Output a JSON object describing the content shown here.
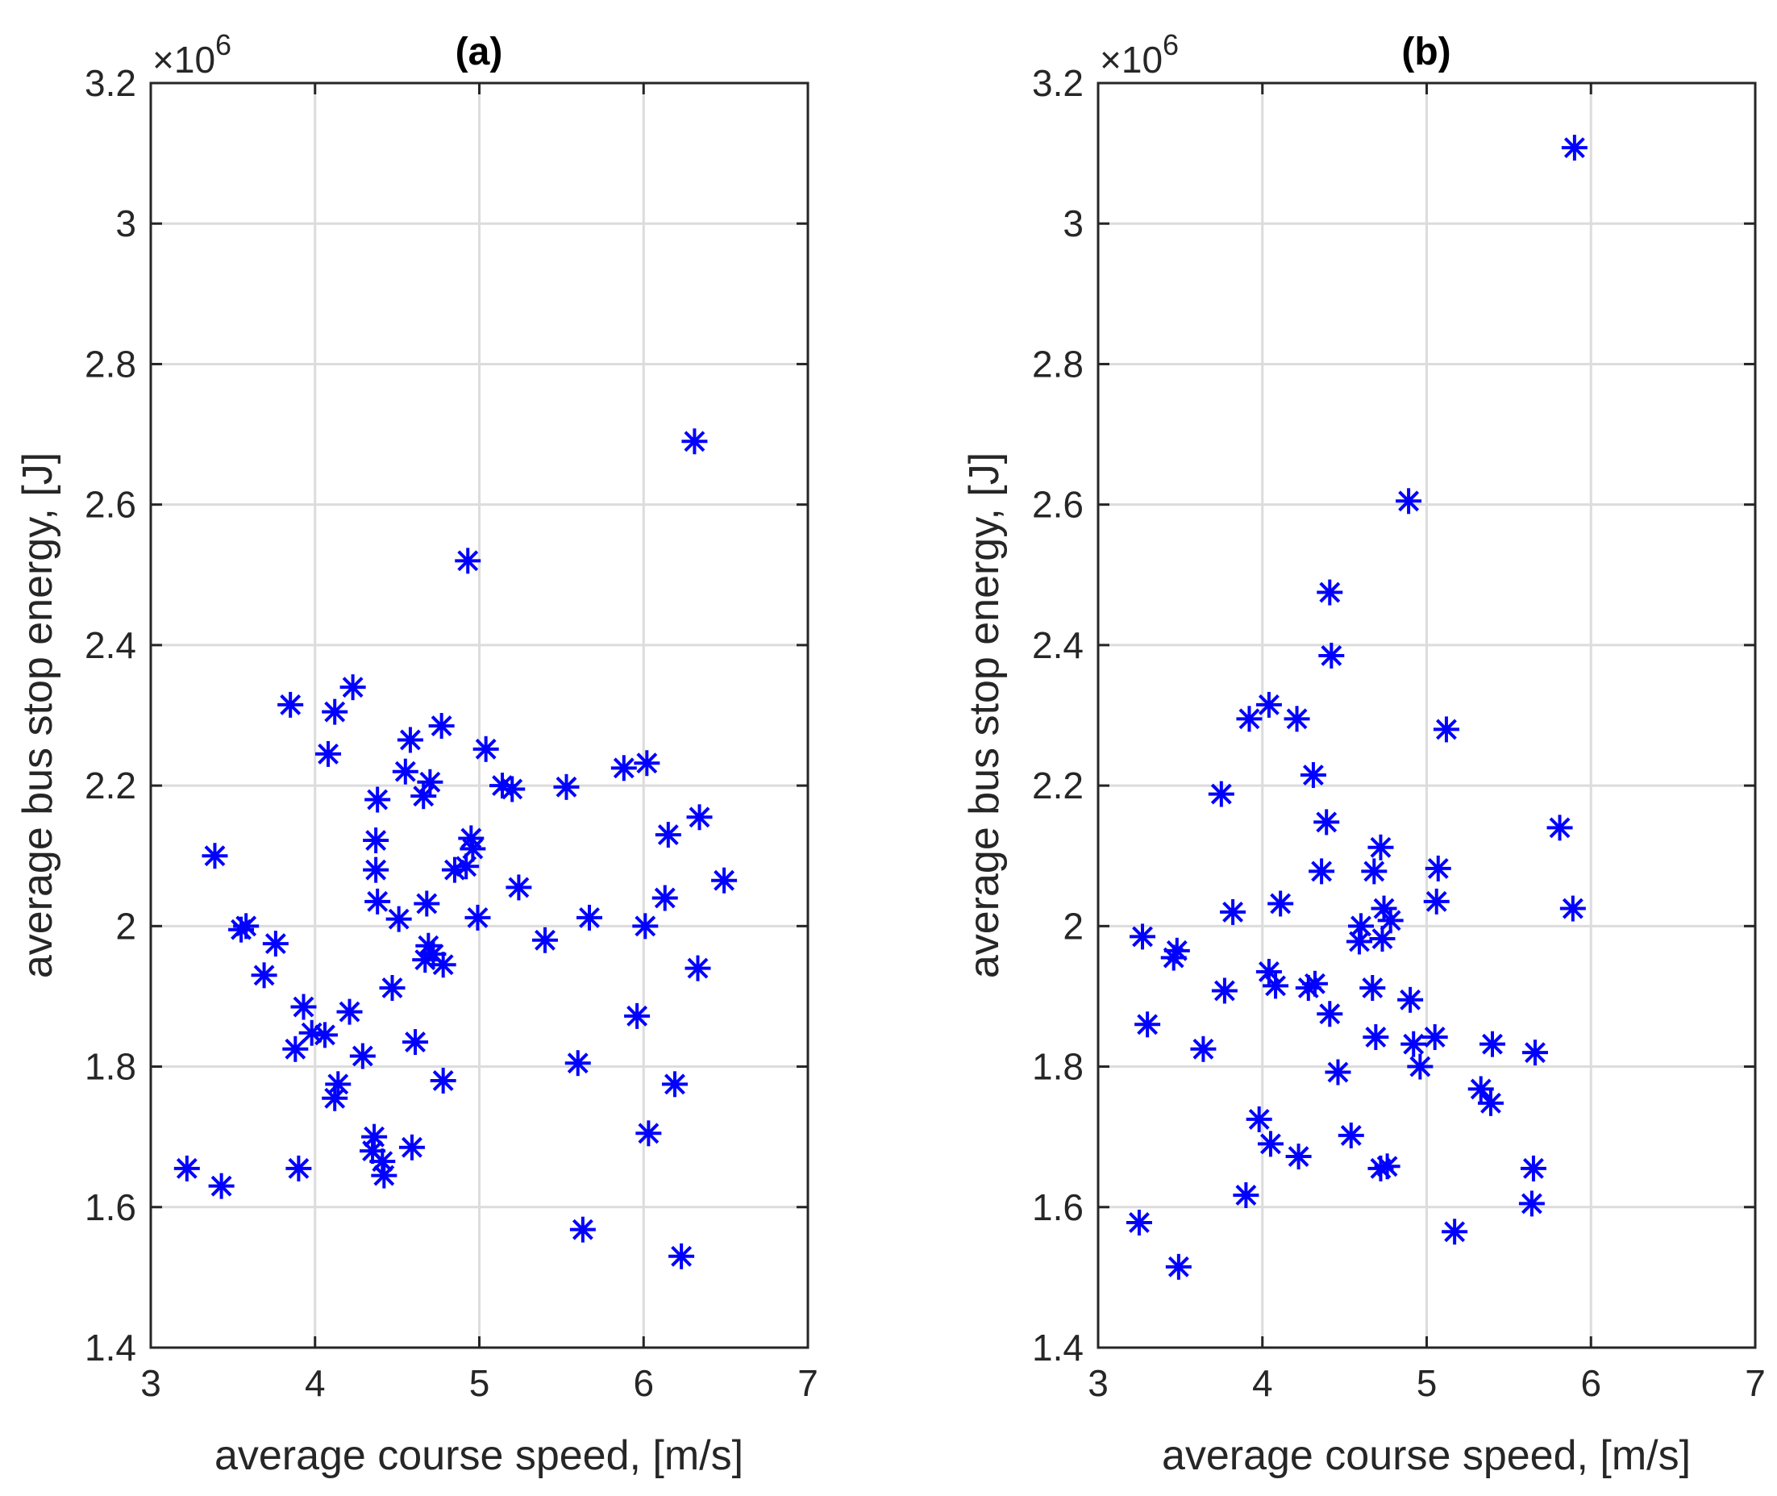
{
  "chart_data": [
    {
      "type": "scatter",
      "title": "(a)",
      "xlabel": "average course speed, [m/s]",
      "ylabel": "average bus stop energy, [J]",
      "exponent_label": "×10",
      "exponent_power": "6",
      "xlim": [
        3,
        7
      ],
      "ylim": [
        1.4,
        3.2
      ],
      "xticks": [
        3,
        4,
        5,
        6,
        7
      ],
      "yticks": [
        1.4,
        1.6,
        1.8,
        2.0,
        2.2,
        2.4,
        2.6,
        2.8,
        3.0,
        3.2
      ],
      "xtick_labels": [
        "3",
        "4",
        "5",
        "6",
        "7"
      ],
      "ytick_labels": [
        "1.4",
        "1.6",
        "1.8",
        "2",
        "2.2",
        "2.4",
        "2.6",
        "2.8",
        "3",
        "3.2"
      ],
      "grid": true,
      "marker": "asterisk",
      "color": "#0000ff",
      "points": [
        [
          3.22,
          1.655
        ],
        [
          3.43,
          1.63
        ],
        [
          3.39,
          2.1
        ],
        [
          3.55,
          1.995
        ],
        [
          3.58,
          2.0
        ],
        [
          3.69,
          1.93
        ],
        [
          3.76,
          1.975
        ],
        [
          3.85,
          2.315
        ],
        [
          3.88,
          1.825
        ],
        [
          3.9,
          1.655
        ],
        [
          3.93,
          1.885
        ],
        [
          3.98,
          1.848
        ],
        [
          4.06,
          1.845
        ],
        [
          4.08,
          2.245
        ],
        [
          4.12,
          2.305
        ],
        [
          4.12,
          1.755
        ],
        [
          4.14,
          1.775
        ],
        [
          4.21,
          1.878
        ],
        [
          4.23,
          2.34
        ],
        [
          4.29,
          1.815
        ],
        [
          4.35,
          1.68
        ],
        [
          4.36,
          1.7
        ],
        [
          4.37,
          2.122
        ],
        [
          4.37,
          2.08
        ],
        [
          4.38,
          2.035
        ],
        [
          4.38,
          2.18
        ],
        [
          4.41,
          1.665
        ],
        [
          4.42,
          1.645
        ],
        [
          4.47,
          1.912
        ],
        [
          4.51,
          2.01
        ],
        [
          4.55,
          2.22
        ],
        [
          4.58,
          2.265
        ],
        [
          4.59,
          1.685
        ],
        [
          4.61,
          1.835
        ],
        [
          4.66,
          2.185
        ],
        [
          4.67,
          1.952
        ],
        [
          4.68,
          2.032
        ],
        [
          4.69,
          1.972
        ],
        [
          4.7,
          2.205
        ],
        [
          4.72,
          1.96
        ],
        [
          4.77,
          2.285
        ],
        [
          4.78,
          1.78
        ],
        [
          4.78,
          1.945
        ],
        [
          4.85,
          2.08
        ],
        [
          4.92,
          2.085
        ],
        [
          4.93,
          2.52
        ],
        [
          4.95,
          2.125
        ],
        [
          4.96,
          2.11
        ],
        [
          4.99,
          2.012
        ],
        [
          5.04,
          2.252
        ],
        [
          5.14,
          2.2
        ],
        [
          5.2,
          2.195
        ],
        [
          5.24,
          2.055
        ],
        [
          5.4,
          1.98
        ],
        [
          5.53,
          2.198
        ],
        [
          5.6,
          1.805
        ],
        [
          5.63,
          1.568
        ],
        [
          5.67,
          2.012
        ],
        [
          5.88,
          2.225
        ],
        [
          5.96,
          1.872
        ],
        [
          6.01,
          2.0
        ],
        [
          6.02,
          2.232
        ],
        [
          6.03,
          1.705
        ],
        [
          6.13,
          2.04
        ],
        [
          6.15,
          2.13
        ],
        [
          6.19,
          1.775
        ],
        [
          6.23,
          1.53
        ],
        [
          6.31,
          2.69
        ],
        [
          6.33,
          1.94
        ],
        [
          6.34,
          2.155
        ],
        [
          6.49,
          2.065
        ]
      ]
    },
    {
      "type": "scatter",
      "title": "(b)",
      "xlabel": "average course speed, [m/s]",
      "ylabel": "average bus stop energy, [J]",
      "exponent_label": "×10",
      "exponent_power": "6",
      "xlim": [
        3,
        7
      ],
      "ylim": [
        1.4,
        3.2
      ],
      "xticks": [
        3,
        4,
        5,
        6,
        7
      ],
      "yticks": [
        1.4,
        1.6,
        1.8,
        2.0,
        2.2,
        2.4,
        2.6,
        2.8,
        3.0,
        3.2
      ],
      "xtick_labels": [
        "3",
        "4",
        "5",
        "6",
        "7"
      ],
      "ytick_labels": [
        "1.4",
        "1.6",
        "1.8",
        "2",
        "2.2",
        "2.4",
        "2.6",
        "2.8",
        "3",
        "3.2"
      ],
      "grid": true,
      "marker": "asterisk",
      "color": "#0000ff",
      "points": [
        [
          3.25,
          1.578
        ],
        [
          3.27,
          1.985
        ],
        [
          3.3,
          1.86
        ],
        [
          3.46,
          1.955
        ],
        [
          3.48,
          1.965
        ],
        [
          3.49,
          1.515
        ],
        [
          3.64,
          1.825
        ],
        [
          3.75,
          2.188
        ],
        [
          3.77,
          1.908
        ],
        [
          3.82,
          2.02
        ],
        [
          3.9,
          1.617
        ],
        [
          3.92,
          2.295
        ],
        [
          3.98,
          1.725
        ],
        [
          4.04,
          2.315
        ],
        [
          4.04,
          1.935
        ],
        [
          4.05,
          1.69
        ],
        [
          4.08,
          1.915
        ],
        [
          4.11,
          2.032
        ],
        [
          4.21,
          2.295
        ],
        [
          4.22,
          1.672
        ],
        [
          4.28,
          1.912
        ],
        [
          4.31,
          2.215
        ],
        [
          4.32,
          1.918
        ],
        [
          4.36,
          2.078
        ],
        [
          4.39,
          2.148
        ],
        [
          4.41,
          2.475
        ],
        [
          4.41,
          1.875
        ],
        [
          4.42,
          2.385
        ],
        [
          4.46,
          1.792
        ],
        [
          4.54,
          1.702
        ],
        [
          4.59,
          1.978
        ],
        [
          4.6,
          2.0
        ],
        [
          4.67,
          1.912
        ],
        [
          4.68,
          2.078
        ],
        [
          4.69,
          1.842
        ],
        [
          4.72,
          1.655
        ],
        [
          4.72,
          2.112
        ],
        [
          4.73,
          1.982
        ],
        [
          4.74,
          2.025
        ],
        [
          4.76,
          1.658
        ],
        [
          4.78,
          2.008
        ],
        [
          4.89,
          2.605
        ],
        [
          4.9,
          1.895
        ],
        [
          4.92,
          1.832
        ],
        [
          4.96,
          1.8
        ],
        [
          5.05,
          1.842
        ],
        [
          5.06,
          2.035
        ],
        [
          5.07,
          2.082
        ],
        [
          5.12,
          2.28
        ],
        [
          5.17,
          1.565
        ],
        [
          5.33,
          1.768
        ],
        [
          5.39,
          1.748
        ],
        [
          5.4,
          1.832
        ],
        [
          5.64,
          1.605
        ],
        [
          5.65,
          1.655
        ],
        [
          5.66,
          1.82
        ],
        [
          5.81,
          2.14
        ],
        [
          5.89,
          2.025
        ],
        [
          5.9,
          3.108
        ]
      ]
    }
  ]
}
